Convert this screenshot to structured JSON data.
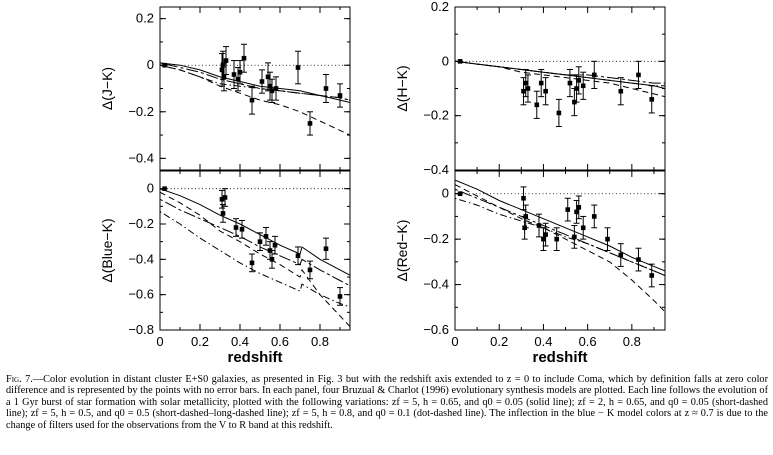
{
  "caption": {
    "label": "Fig. 7.",
    "text": "—Color evolution in distant cluster E+S0 galaxies, as presented in Fig. 3 but with the redshift axis extended to z = 0 to include Coma, which by definition falls at zero color difference and is represented by the points with no error bars. In each panel, four Bruzual & Charlot (1996) evolutionary synthesis models are plotted. Each line follows the evolution of a 1 Gyr burst of star formation with solar metallicity, plotted with the following variations: zf = 5, h = 0.65, and q0 = 0.05 (solid line); zf = 2, h = 0.65, and q0 = 0.05 (short-dashed line); zf = 5, h = 0.5, and q0 = 0.5 (short-dashed–long-dashed line); zf = 5, h = 0.8, and q0 = 0.1 (dot-dashed line). The inflection in the blue − K model colors at z ≈ 0.7 is due to the change of filters used for the observations from the V to R band at this redshift."
  },
  "chart_data": [
    {
      "type": "scatter",
      "panel": "top-left",
      "xlabel": "",
      "ylabel": "Δ(J−K)",
      "xlim": [
        0,
        0.95
      ],
      "ylim": [
        -0.45,
        0.25
      ],
      "xticks": [
        0,
        0.2,
        0.4,
        0.6,
        0.8
      ],
      "yticks": [
        0.2,
        0,
        -0.2,
        -0.4
      ],
      "ytick_labels": [
        "0.2",
        "0",
        "−0.2",
        "−0.4"
      ],
      "points": [
        {
          "x": 0.023,
          "y": 0.0,
          "err": 0
        },
        {
          "x": 0.31,
          "y": -0.02,
          "err": 0.07
        },
        {
          "x": 0.315,
          "y": 0.0,
          "err": 0.06
        },
        {
          "x": 0.32,
          "y": -0.05,
          "err": 0.06
        },
        {
          "x": 0.33,
          "y": 0.02,
          "err": 0.06
        },
        {
          "x": 0.37,
          "y": -0.04,
          "err": 0.06
        },
        {
          "x": 0.39,
          "y": -0.06,
          "err": 0.05
        },
        {
          "x": 0.4,
          "y": -0.03,
          "err": 0.05
        },
        {
          "x": 0.42,
          "y": 0.03,
          "err": 0.06
        },
        {
          "x": 0.46,
          "y": -0.15,
          "err": 0.06
        },
        {
          "x": 0.51,
          "y": -0.07,
          "err": 0.05
        },
        {
          "x": 0.54,
          "y": -0.05,
          "err": 0.06
        },
        {
          "x": 0.55,
          "y": -0.09,
          "err": 0.06
        },
        {
          "x": 0.56,
          "y": -0.11,
          "err": 0.05
        },
        {
          "x": 0.58,
          "y": -0.1,
          "err": 0.05
        },
        {
          "x": 0.69,
          "y": -0.01,
          "err": 0.07
        },
        {
          "x": 0.75,
          "y": -0.25,
          "err": 0.05
        },
        {
          "x": 0.83,
          "y": -0.1,
          "err": 0.06
        },
        {
          "x": 0.9,
          "y": -0.13,
          "err": 0.05
        }
      ],
      "models": [
        {
          "style": "solid",
          "x": [
            0,
            0.1,
            0.2,
            0.3,
            0.4,
            0.5,
            0.6,
            0.7,
            0.8,
            0.9,
            0.95
          ],
          "y": [
            0.01,
            0.0,
            -0.02,
            -0.05,
            -0.07,
            -0.09,
            -0.1,
            -0.11,
            -0.13,
            -0.15,
            -0.16
          ]
        },
        {
          "style": "short-dashed",
          "x": [
            0,
            0.1,
            0.2,
            0.3,
            0.4,
            0.5,
            0.6,
            0.7,
            0.8,
            0.9,
            0.95
          ],
          "y": [
            0.0,
            -0.02,
            -0.05,
            -0.09,
            -0.12,
            -0.15,
            -0.17,
            -0.2,
            -0.24,
            -0.28,
            -0.3
          ]
        },
        {
          "style": "short-dashed-long-dashed",
          "x": [
            0,
            0.1,
            0.2,
            0.3,
            0.4,
            0.5,
            0.6,
            0.7,
            0.8,
            0.9,
            0.95
          ],
          "y": [
            0.01,
            -0.01,
            -0.03,
            -0.06,
            -0.08,
            -0.1,
            -0.11,
            -0.12,
            -0.13,
            -0.14,
            -0.15
          ]
        },
        {
          "style": "dot-dashed",
          "x": [
            0,
            0.1,
            0.2,
            0.3,
            0.4,
            0.5,
            0.6,
            0.7,
            0.8,
            0.9,
            0.95
          ],
          "y": [
            0.0,
            -0.02,
            -0.05,
            -0.08,
            -0.09,
            -0.1,
            -0.11,
            -0.12,
            -0.13,
            -0.14,
            -0.15
          ]
        }
      ]
    },
    {
      "type": "scatter",
      "panel": "top-right",
      "xlabel": "",
      "ylabel": "Δ(H−K)",
      "xlim": [
        0,
        0.95
      ],
      "ylim": [
        -0.4,
        0.2
      ],
      "xticks": [
        0,
        0.2,
        0.4,
        0.6,
        0.8
      ],
      "yticks": [
        0.2,
        0,
        -0.2,
        -0.4
      ],
      "ytick_labels": [
        "0.2",
        "0",
        "−0.2",
        "−0.4"
      ],
      "points": [
        {
          "x": 0.023,
          "y": 0.0,
          "err": 0
        },
        {
          "x": 0.31,
          "y": -0.11,
          "err": 0.05
        },
        {
          "x": 0.32,
          "y": -0.08,
          "err": 0.05
        },
        {
          "x": 0.33,
          "y": -0.1,
          "err": 0.05
        },
        {
          "x": 0.37,
          "y": -0.16,
          "err": 0.05
        },
        {
          "x": 0.39,
          "y": -0.08,
          "err": 0.05
        },
        {
          "x": 0.41,
          "y": -0.11,
          "err": 0.05
        },
        {
          "x": 0.47,
          "y": -0.19,
          "err": 0.05
        },
        {
          "x": 0.52,
          "y": -0.08,
          "err": 0.05
        },
        {
          "x": 0.54,
          "y": -0.15,
          "err": 0.05
        },
        {
          "x": 0.55,
          "y": -0.1,
          "err": 0.05
        },
        {
          "x": 0.56,
          "y": -0.07,
          "err": 0.05
        },
        {
          "x": 0.58,
          "y": -0.09,
          "err": 0.05
        },
        {
          "x": 0.63,
          "y": -0.05,
          "err": 0.05
        },
        {
          "x": 0.75,
          "y": -0.11,
          "err": 0.05
        },
        {
          "x": 0.83,
          "y": -0.05,
          "err": 0.05
        },
        {
          "x": 0.89,
          "y": -0.14,
          "err": 0.05
        }
      ],
      "models": [
        {
          "style": "solid",
          "x": [
            0,
            0.1,
            0.2,
            0.3,
            0.4,
            0.5,
            0.6,
            0.7,
            0.8,
            0.9,
            0.95
          ],
          "y": [
            0.0,
            -0.01,
            -0.02,
            -0.03,
            -0.04,
            -0.05,
            -0.06,
            -0.07,
            -0.08,
            -0.09,
            -0.1
          ]
        },
        {
          "style": "short-dashed",
          "x": [
            0,
            0.1,
            0.2,
            0.3,
            0.4,
            0.5,
            0.6,
            0.7,
            0.8,
            0.9,
            0.95
          ],
          "y": [
            0.0,
            -0.01,
            -0.02,
            -0.04,
            -0.05,
            -0.06,
            -0.07,
            -0.08,
            -0.1,
            -0.12,
            -0.13
          ]
        },
        {
          "style": "short-dashed-long-dashed",
          "x": [
            0,
            0.1,
            0.2,
            0.3,
            0.4,
            0.5,
            0.6,
            0.7,
            0.8,
            0.9,
            0.95
          ],
          "y": [
            0.0,
            -0.01,
            -0.02,
            -0.03,
            -0.04,
            -0.05,
            -0.05,
            -0.06,
            -0.07,
            -0.08,
            -0.08
          ]
        },
        {
          "style": "dot-dashed",
          "x": [
            0,
            0.1,
            0.2,
            0.3,
            0.4,
            0.5,
            0.6,
            0.7,
            0.8,
            0.9,
            0.95
          ],
          "y": [
            0.0,
            -0.01,
            -0.02,
            -0.03,
            -0.04,
            -0.05,
            -0.06,
            -0.07,
            -0.08,
            -0.09,
            -0.09
          ]
        }
      ]
    },
    {
      "type": "scatter",
      "panel": "bottom-left",
      "xlabel": "redshift",
      "ylabel": "Δ(Blue−K)",
      "xlim": [
        0,
        0.95
      ],
      "ylim": [
        -0.8,
        0.1
      ],
      "xticks": [
        0,
        0.2,
        0.4,
        0.6,
        0.8
      ],
      "xtick_labels": [
        "0",
        "0.2",
        "0.4",
        "0.6",
        "0.8"
      ],
      "yticks": [
        0,
        -0.2,
        -0.4,
        -0.6,
        -0.8
      ],
      "ytick_labels": [
        "0",
        "−0.2",
        "−0.4",
        "−0.6",
        "−0.8"
      ],
      "points": [
        {
          "x": 0.023,
          "y": 0.0,
          "err": 0
        },
        {
          "x": 0.31,
          "y": -0.06,
          "err": 0.05
        },
        {
          "x": 0.315,
          "y": -0.14,
          "err": 0.05
        },
        {
          "x": 0.325,
          "y": -0.05,
          "err": 0.05
        },
        {
          "x": 0.38,
          "y": -0.22,
          "err": 0.05
        },
        {
          "x": 0.41,
          "y": -0.23,
          "err": 0.05
        },
        {
          "x": 0.46,
          "y": -0.42,
          "err": 0.05
        },
        {
          "x": 0.5,
          "y": -0.3,
          "err": 0.05
        },
        {
          "x": 0.53,
          "y": -0.27,
          "err": 0.05
        },
        {
          "x": 0.55,
          "y": -0.35,
          "err": 0.05
        },
        {
          "x": 0.56,
          "y": -0.4,
          "err": 0.05
        },
        {
          "x": 0.575,
          "y": -0.32,
          "err": 0.05
        },
        {
          "x": 0.69,
          "y": -0.38,
          "err": 0.05
        },
        {
          "x": 0.75,
          "y": -0.46,
          "err": 0.05
        },
        {
          "x": 0.83,
          "y": -0.34,
          "err": 0.06
        },
        {
          "x": 0.9,
          "y": -0.61,
          "err": 0.05
        }
      ],
      "models": [
        {
          "style": "solid",
          "x": [
            0,
            0.1,
            0.2,
            0.3,
            0.4,
            0.5,
            0.6,
            0.7,
            0.71,
            0.8,
            0.9,
            0.95
          ],
          "y": [
            0.0,
            -0.04,
            -0.09,
            -0.15,
            -0.2,
            -0.26,
            -0.32,
            -0.37,
            -0.33,
            -0.4,
            -0.46,
            -0.49
          ]
        },
        {
          "style": "short-dashed",
          "x": [
            0,
            0.1,
            0.2,
            0.3,
            0.4,
            0.5,
            0.6,
            0.7,
            0.71,
            0.8,
            0.9,
            0.95
          ],
          "y": [
            -0.02,
            -0.08,
            -0.15,
            -0.24,
            -0.3,
            -0.37,
            -0.43,
            -0.5,
            -0.46,
            -0.6,
            -0.72,
            -0.78
          ]
        },
        {
          "style": "short-dashed-long-dashed",
          "x": [
            0,
            0.1,
            0.2,
            0.3,
            0.4,
            0.5,
            0.6,
            0.7,
            0.71,
            0.8,
            0.9,
            0.95
          ],
          "y": [
            -0.06,
            -0.12,
            -0.17,
            -0.22,
            -0.27,
            -0.33,
            -0.38,
            -0.43,
            -0.4,
            -0.46,
            -0.52,
            -0.55
          ]
        },
        {
          "style": "dot-dashed",
          "x": [
            0,
            0.1,
            0.2,
            0.3,
            0.4,
            0.5,
            0.6,
            0.7,
            0.71,
            0.8,
            0.9,
            0.95
          ],
          "y": [
            -0.13,
            -0.2,
            -0.28,
            -0.35,
            -0.42,
            -0.48,
            -0.53,
            -0.58,
            -0.54,
            -0.6,
            -0.65,
            -0.67
          ]
        }
      ]
    },
    {
      "type": "scatter",
      "panel": "bottom-right",
      "xlabel": "redshift",
      "ylabel": "Δ(Red−K)",
      "xlim": [
        0,
        0.95
      ],
      "ylim": [
        -0.6,
        0.1
      ],
      "xticks": [
        0,
        0.2,
        0.4,
        0.6,
        0.8
      ],
      "xtick_labels": [
        "0",
        "0.2",
        "0.4",
        "0.6",
        "0.8"
      ],
      "yticks": [
        0,
        -0.2,
        -0.4,
        -0.6
      ],
      "ytick_labels": [
        "0",
        "−0.2",
        "−0.4",
        "−0.6"
      ],
      "points": [
        {
          "x": 0.023,
          "y": 0.0,
          "err": 0
        },
        {
          "x": 0.31,
          "y": -0.02,
          "err": 0.05
        },
        {
          "x": 0.315,
          "y": -0.15,
          "err": 0.05
        },
        {
          "x": 0.32,
          "y": -0.1,
          "err": 0.05
        },
        {
          "x": 0.38,
          "y": -0.14,
          "err": 0.05
        },
        {
          "x": 0.4,
          "y": -0.2,
          "err": 0.05
        },
        {
          "x": 0.41,
          "y": -0.18,
          "err": 0.05
        },
        {
          "x": 0.46,
          "y": -0.2,
          "err": 0.05
        },
        {
          "x": 0.51,
          "y": -0.07,
          "err": 0.05
        },
        {
          "x": 0.54,
          "y": -0.19,
          "err": 0.05
        },
        {
          "x": 0.55,
          "y": -0.08,
          "err": 0.05
        },
        {
          "x": 0.56,
          "y": -0.06,
          "err": 0.05
        },
        {
          "x": 0.58,
          "y": -0.15,
          "err": 0.05
        },
        {
          "x": 0.63,
          "y": -0.1,
          "err": 0.05
        },
        {
          "x": 0.69,
          "y": -0.2,
          "err": 0.05
        },
        {
          "x": 0.75,
          "y": -0.27,
          "err": 0.05
        },
        {
          "x": 0.83,
          "y": -0.29,
          "err": 0.05
        },
        {
          "x": 0.89,
          "y": -0.36,
          "err": 0.05
        }
      ],
      "models": [
        {
          "style": "solid",
          "x": [
            0,
            0.1,
            0.2,
            0.3,
            0.4,
            0.5,
            0.6,
            0.7,
            0.8,
            0.9,
            0.95
          ],
          "y": [
            0.06,
            0.02,
            -0.03,
            -0.07,
            -0.11,
            -0.15,
            -0.19,
            -0.23,
            -0.28,
            -0.32,
            -0.34
          ]
        },
        {
          "style": "short-dashed",
          "x": [
            0,
            0.1,
            0.2,
            0.3,
            0.4,
            0.5,
            0.6,
            0.7,
            0.8,
            0.9,
            0.95
          ],
          "y": [
            0.04,
            -0.01,
            -0.06,
            -0.11,
            -0.15,
            -0.2,
            -0.25,
            -0.3,
            -0.38,
            -0.47,
            -0.52
          ]
        },
        {
          "style": "short-dashed-long-dashed",
          "x": [
            0,
            0.1,
            0.2,
            0.3,
            0.4,
            0.5,
            0.6,
            0.7,
            0.8,
            0.9,
            0.95
          ],
          "y": [
            0.02,
            -0.02,
            -0.06,
            -0.1,
            -0.14,
            -0.18,
            -0.22,
            -0.26,
            -0.3,
            -0.34,
            -0.36
          ]
        },
        {
          "style": "dot-dashed",
          "x": [
            0,
            0.1,
            0.2,
            0.3,
            0.4,
            0.5,
            0.6,
            0.7,
            0.8,
            0.9,
            0.95
          ],
          "y": [
            -0.02,
            -0.05,
            -0.09,
            -0.12,
            -0.15,
            -0.19,
            -0.22,
            -0.26,
            -0.3,
            -0.34,
            -0.36
          ]
        }
      ]
    }
  ]
}
